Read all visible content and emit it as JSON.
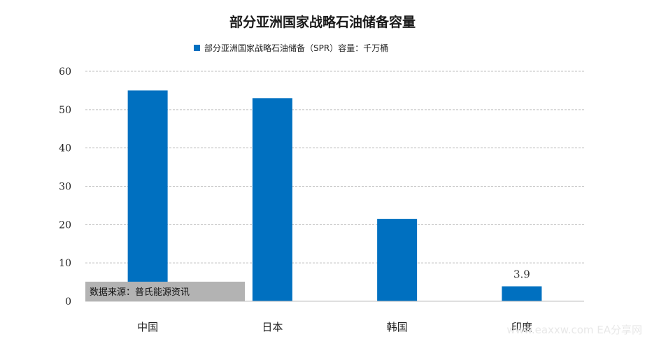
{
  "chart_data": {
    "type": "bar",
    "title": "部分亚洲国家战略石油储备容量",
    "categories": [
      "中国",
      "日本",
      "韩国",
      "印度"
    ],
    "series": [
      {
        "name": "部分亚洲国家战略石油储备（SPR）容量：千万桶",
        "values": [
          55,
          53,
          21.5,
          3.9
        ],
        "color": "#0070C0"
      }
    ],
    "data_labels": [
      null,
      null,
      null,
      "3.9"
    ],
    "yticks": [
      "0",
      "10",
      "20",
      "30",
      "40",
      "50",
      "60"
    ],
    "ylim": [
      0,
      60
    ],
    "grid": true,
    "legend_position": "top"
  },
  "source_note": "数据来源：普氏能源资讯",
  "watermark": "www.eaxxw.com  EA分享网",
  "colors": {
    "bar": "#0070C0",
    "gridline": "#bfbfbf",
    "source_bg": "#b3b3b3"
  }
}
